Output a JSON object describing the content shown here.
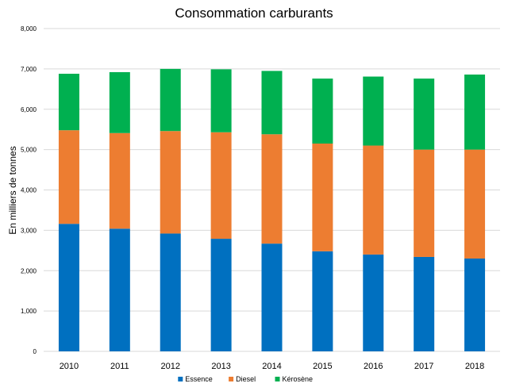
{
  "chart_data": {
    "type": "bar",
    "stacked": true,
    "title": "Consommation carburants",
    "xlabel": "",
    "ylabel": "En milliers de tonnes",
    "ylim": [
      0,
      8000
    ],
    "yticks": [
      "0",
      "1,000",
      "2,000",
      "3,000",
      "4,000",
      "5,000",
      "6,000",
      "7,000",
      "8,000"
    ],
    "grid": true,
    "legend_position": "bottom",
    "categories": [
      "2010",
      "2011",
      "2012",
      "2013",
      "2014",
      "2015",
      "2016",
      "2017",
      "2018"
    ],
    "series": [
      {
        "name": "Essence",
        "color": "#0070c0",
        "values": [
          3160,
          3040,
          2920,
          2790,
          2670,
          2480,
          2400,
          2340,
          2300
        ]
      },
      {
        "name": "Diesel",
        "color": "#ed7d31",
        "values": [
          2320,
          2370,
          2540,
          2640,
          2710,
          2670,
          2700,
          2660,
          2700
        ]
      },
      {
        "name": "Kérosène",
        "color": "#00b050",
        "values": [
          1400,
          1510,
          1540,
          1560,
          1570,
          1610,
          1710,
          1760,
          1860
        ]
      }
    ]
  }
}
